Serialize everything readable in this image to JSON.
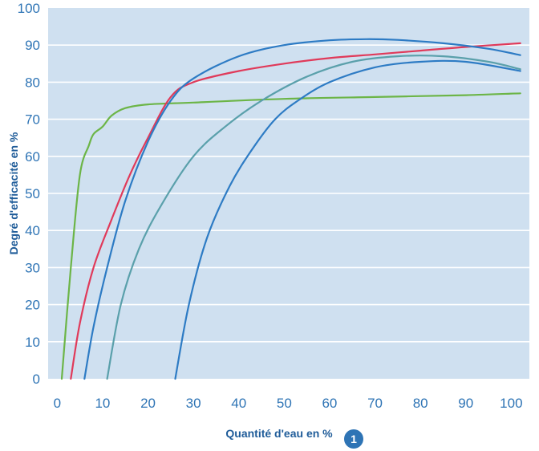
{
  "chart_data": {
    "type": "line",
    "title": "",
    "xlabel": "Quantité d'eau en %",
    "ylabel": "Degré d'efficacité en %",
    "xlim": [
      -2,
      104
    ],
    "ylim": [
      0,
      100
    ],
    "x_ticks": [
      0,
      10,
      20,
      30,
      40,
      50,
      60,
      70,
      80,
      90,
      100
    ],
    "y_ticks": [
      0,
      10,
      20,
      30,
      40,
      50,
      60,
      70,
      80,
      90,
      100
    ],
    "grid": true,
    "legend": "none",
    "plot_background": "#cfe0f0",
    "grid_color": "#ffffff",
    "series": [
      {
        "name": "green",
        "color": "#6cb547",
        "x": [
          1,
          3,
          5,
          7,
          8,
          10,
          12,
          15,
          20,
          30,
          50,
          70,
          90,
          102
        ],
        "y": [
          0,
          30,
          55,
          63,
          66,
          68,
          71,
          73,
          74,
          74.5,
          75.5,
          76,
          76.5,
          77
        ]
      },
      {
        "name": "red",
        "color": "#e03a5a",
        "x": [
          3,
          5,
          8,
          12,
          16,
          20,
          25,
          30,
          40,
          50,
          60,
          70,
          80,
          90,
          102
        ],
        "y": [
          0,
          15,
          30,
          43,
          55,
          65,
          76,
          80,
          83,
          85,
          86.5,
          87.5,
          88.5,
          89.5,
          90.5
        ]
      },
      {
        "name": "blue",
        "color": "#2d7bc4",
        "x": [
          6,
          8,
          11,
          15,
          20,
          25,
          30,
          40,
          50,
          60,
          68,
          75,
          85,
          95,
          102
        ],
        "y": [
          0,
          14,
          30,
          48,
          64,
          75,
          81,
          87,
          90,
          91.3,
          91.6,
          91.4,
          90.5,
          89,
          87.3
        ]
      },
      {
        "name": "teal",
        "color": "#5aa0ab",
        "x": [
          11,
          14,
          18,
          23,
          30,
          37,
          45,
          55,
          65,
          75,
          85,
          95,
          102
        ],
        "y": [
          0,
          20,
          35,
          47,
          60,
          68,
          75,
          81.5,
          85.5,
          87,
          87,
          85.5,
          83.5
        ]
      },
      {
        "name": "blue-late",
        "color": "#2d7bc4",
        "x": [
          26,
          29,
          33,
          38,
          43,
          48,
          53,
          60,
          70,
          80,
          90,
          102
        ],
        "y": [
          0,
          20,
          38,
          52,
          62,
          70,
          75,
          80,
          84,
          85.5,
          85.5,
          83
        ]
      }
    ]
  },
  "annotation": {
    "badge_number": "1",
    "badge_color": "#2e74b5"
  }
}
